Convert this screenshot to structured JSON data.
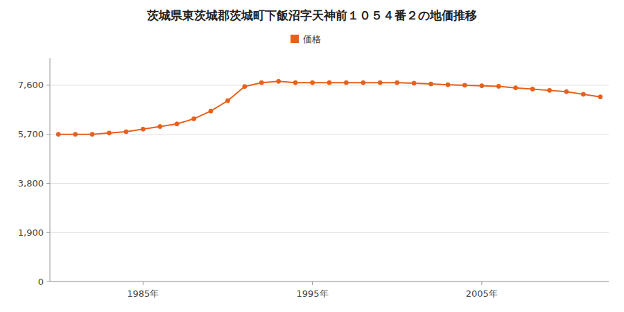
{
  "chart_data": {
    "type": "line",
    "title": "茨城県東茨城郡茨城町下飯沼字天神前１０５４番２の地価推移",
    "x": [
      1980,
      1981,
      1982,
      1983,
      1984,
      1985,
      1986,
      1987,
      1988,
      1989,
      1990,
      1991,
      1992,
      1993,
      1994,
      1995,
      1996,
      1997,
      1998,
      1999,
      2000,
      2001,
      2002,
      2003,
      2004,
      2005,
      2006,
      2007,
      2008,
      2009,
      2010,
      2011,
      2012
    ],
    "series": [
      {
        "name": "価格",
        "color": "#e8601c",
        "marker": "circle",
        "values": [
          5700,
          5700,
          5700,
          5750,
          5800,
          5900,
          6000,
          6100,
          6300,
          6600,
          7000,
          7550,
          7700,
          7750,
          7700,
          7700,
          7700,
          7700,
          7700,
          7700,
          7700,
          7680,
          7650,
          7620,
          7600,
          7580,
          7560,
          7500,
          7450,
          7400,
          7350,
          7250,
          7150
        ]
      }
    ],
    "xlim": [
      1979.5,
      2012.5
    ],
    "xticks": [
      {
        "value": 1985,
        "label": "1985年"
      },
      {
        "value": 1995,
        "label": "1995年"
      },
      {
        "value": 2005,
        "label": "2005年"
      }
    ],
    "ylim": [
      0,
      8645
    ],
    "yticks": [
      0,
      {
        "value": 1900,
        "label": "1,900"
      },
      {
        "value": 3800,
        "label": "3,800"
      },
      {
        "value": 5700,
        "label": "5,700"
      },
      {
        "value": 7600,
        "label": "7,600"
      }
    ],
    "grid": true,
    "legend": "top"
  }
}
